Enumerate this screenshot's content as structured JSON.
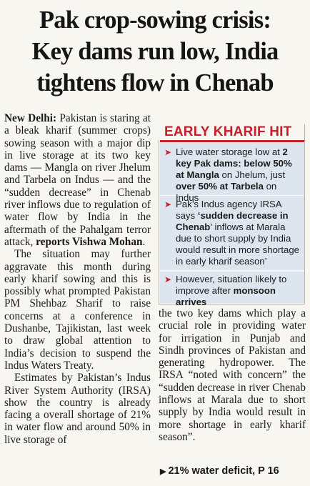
{
  "headline": {
    "line1": "Pak crop-sowing crisis:",
    "line2": "Key dams run low, India",
    "line3": "tightens flow in Chenab"
  },
  "left_column": {
    "dateline": "New Delhi:",
    "p1_text": " Pakistan is staring at a bleak kharif (summer crops) sowing season with a major dip in live storage at its two key dams — Mangla on river Jhelum and Tarbela on Indus — and the “sudden decrease” in Chenab river inflows due to regulation of water flow by India in the aftermath of the Pahalgam terror attack, ",
    "byline": "reports Vishwa Mohan",
    "byline_end": ".",
    "p2": "The situation may further aggravate this month during early kharif sowing and this is possibly what prompted Pakistan PM Shehbaz Sharif to raise concerns at a conference in Dushanbe, Tajikistan, last week to draw global attention to India’s decision to suspend the Indus Waters Treaty.",
    "p3": "Estimates by Pakistan’s Indus River System Authority (IRSA) show the country is already facing a overall shortage of 21% in water flow and around 50% in live storage of"
  },
  "sidebar": {
    "title": "EARLY KHARIF HIT",
    "accent_color": "#c6202a",
    "bullet_icon": "arrow-right-icon",
    "item1": {
      "a": "Live water storage low at ",
      "b": "2 key Pak dams: below 50% at Mangla",
      "c": " on Jhelum, just ",
      "d": "over 50% at Tarbela",
      "e": " on Indus"
    },
    "item2": {
      "a": "Pak’s Indus agency IRSA says ",
      "b": "‘sudden decrease in Chenab",
      "c": "’ inflows at Marala due to short supply by India would result in more shortage in early kharif season’"
    },
    "item3": {
      "a": "However, situation likely to improve after ",
      "b": "monsoon arrives"
    }
  },
  "right_column": {
    "p1": "the two key dams which play a crucial role in providing water for irrigation in Punjab and Sindh provinces of Pakistan and generating hydropower. The IRSA “noted with concern” the “sudden decrease in river Chenab inflows at Marala due to short supply by India would result in more shortage in early kharif season”."
  },
  "footer": {
    "text": "21% water deficit, P 16"
  }
}
